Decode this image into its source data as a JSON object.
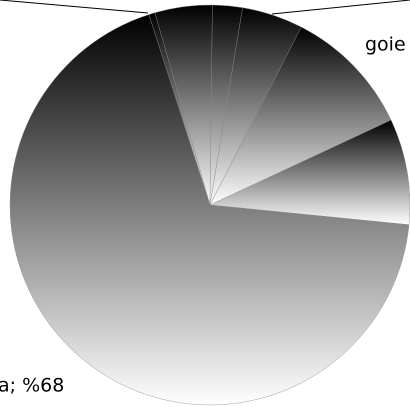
{
  "chart_data": {
    "type": "pie",
    "categories": [
      null,
      null,
      null,
      "goie",
      null,
      null,
      "a; %68"
    ],
    "values": [
      0.5,
      4.6,
      2.4,
      4.9,
      10.4,
      8.5,
      68
    ]
  }
}
